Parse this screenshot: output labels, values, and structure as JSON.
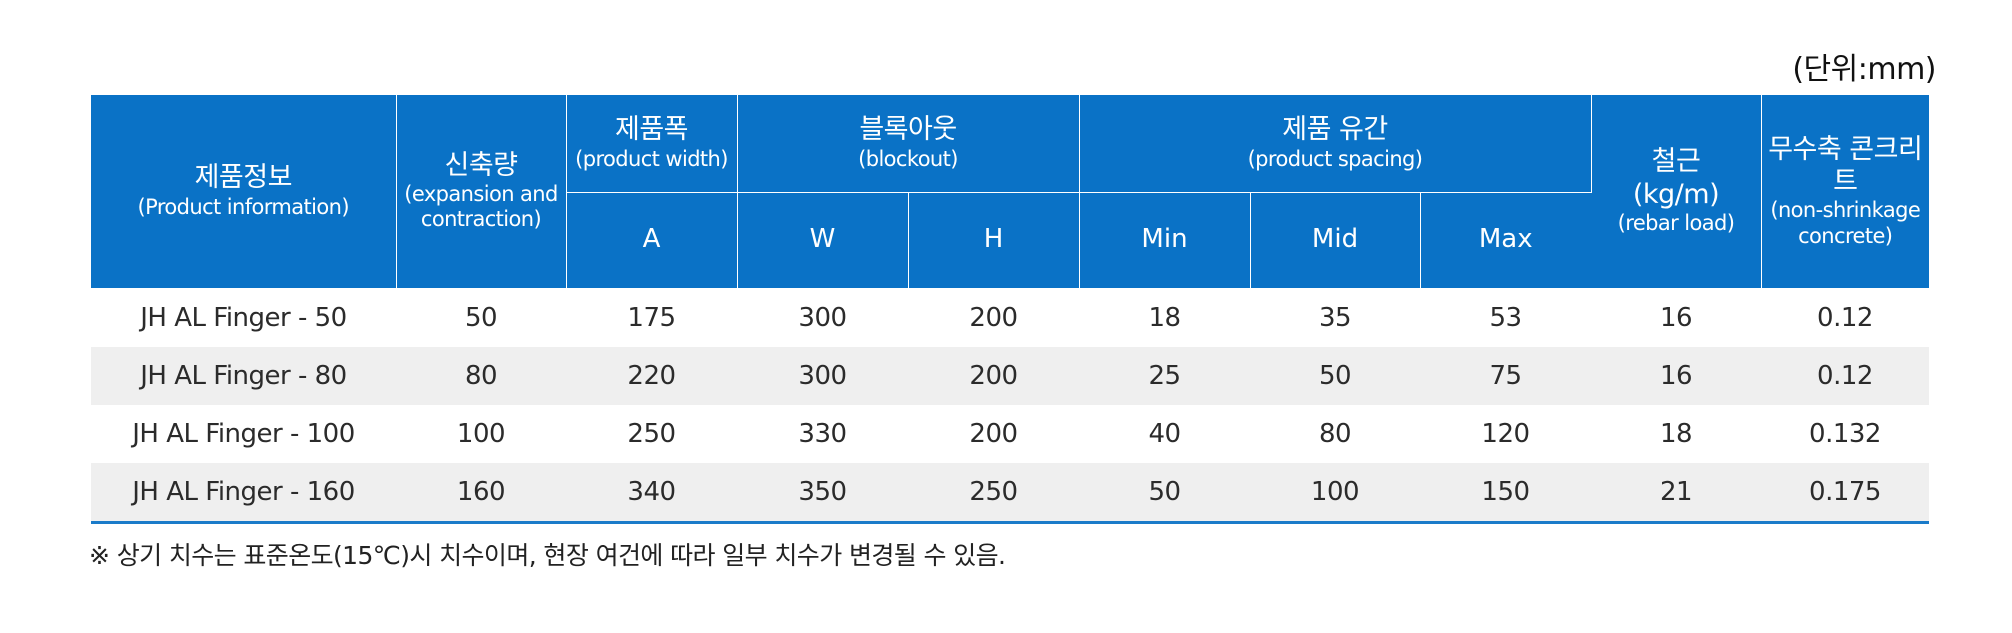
{
  "unit_label": "(단위:mm)",
  "header": {
    "product": {
      "ko": "제품정보",
      "en": "(Product information)"
    },
    "expansion": {
      "ko": "신축량",
      "en": "(expansion and contraction)"
    },
    "width": {
      "ko": "제품폭",
      "en": "(product width)",
      "sub": "A"
    },
    "blockout": {
      "ko": "블록아웃",
      "en": "(blockout)",
      "sub_w": "W",
      "sub_h": "H"
    },
    "spacing": {
      "ko": "제품 유간",
      "en": "(product spacing)",
      "sub_min": "Min",
      "sub_mid": "Mid",
      "sub_max": "Max"
    },
    "rebar": {
      "ko": "철근",
      "unit": "(kg/m)",
      "en": "(rebar load)"
    },
    "concrete": {
      "ko": "무수축 콘크리트",
      "en": "(non-shrinkage concrete)"
    }
  },
  "rows": [
    {
      "name": "JH AL Finger - 50",
      "expansion": "50",
      "a": "175",
      "w": "300",
      "h": "200",
      "min": "18",
      "mid": "35",
      "max": "53",
      "rebar": "16",
      "concrete": "0.12"
    },
    {
      "name": "JH AL Finger - 80",
      "expansion": "80",
      "a": "220",
      "w": "300",
      "h": "200",
      "min": "25",
      "mid": "50",
      "max": "75",
      "rebar": "16",
      "concrete": "0.12"
    },
    {
      "name": "JH AL Finger - 100",
      "expansion": "100",
      "a": "250",
      "w": "330",
      "h": "200",
      "min": "40",
      "mid": "80",
      "max": "120",
      "rebar": "18",
      "concrete": "0.132"
    },
    {
      "name": "JH AL Finger - 160",
      "expansion": "160",
      "a": "340",
      "w": "350",
      "h": "250",
      "min": "50",
      "mid": "100",
      "max": "150",
      "rebar": "21",
      "concrete": "0.175"
    }
  ],
  "note": "※ 상기 치수는 표준온도(15℃)시 치수이며, 현장 여건에 따라 일부 치수가 변경될 수 있음."
}
